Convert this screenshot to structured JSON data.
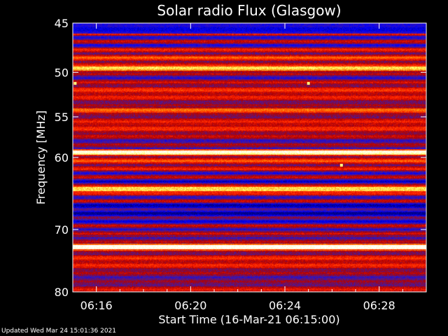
{
  "chart_data": {
    "type": "heatmap",
    "title": "Solar radio Flux (Glasgow)",
    "xlabel": "Start Time (16-Mar-21 06:15:00)",
    "ylabel": "Frequency [MHz]",
    "x_ticks": [
      "06:16",
      "06:20",
      "06:24",
      "06:28"
    ],
    "x_tick_minutes": [
      1,
      5,
      9,
      13
    ],
    "x_range_minutes": [
      0,
      15
    ],
    "y_ticks": [
      45,
      50,
      55,
      60,
      70,
      80
    ],
    "y_scale": "log",
    "y_range": [
      45,
      80
    ],
    "colormap": [
      "#000080",
      "#0000ff",
      "#4a1a9a",
      "#b00000",
      "#ff2000",
      "#ff8000",
      "#ffff60",
      "#ffffff"
    ],
    "bright_bands_mhz": [
      {
        "freq": 49.6,
        "intensity": 0.75
      },
      {
        "freq": 54.3,
        "intensity": 0.6
      },
      {
        "freq": 59.4,
        "intensity": 0.9
      },
      {
        "freq": 64.2,
        "intensity": 0.82
      },
      {
        "freq": 72.7,
        "intensity": 1.0
      }
    ],
    "bursts": [
      {
        "minute": 0.1,
        "freq": 51.2
      },
      {
        "minute": 10.0,
        "freq": 51.2
      },
      {
        "minute": 11.4,
        "freq": 61.0
      }
    ]
  },
  "footer": "Updated Wed Mar 24 15:01:36 2021"
}
